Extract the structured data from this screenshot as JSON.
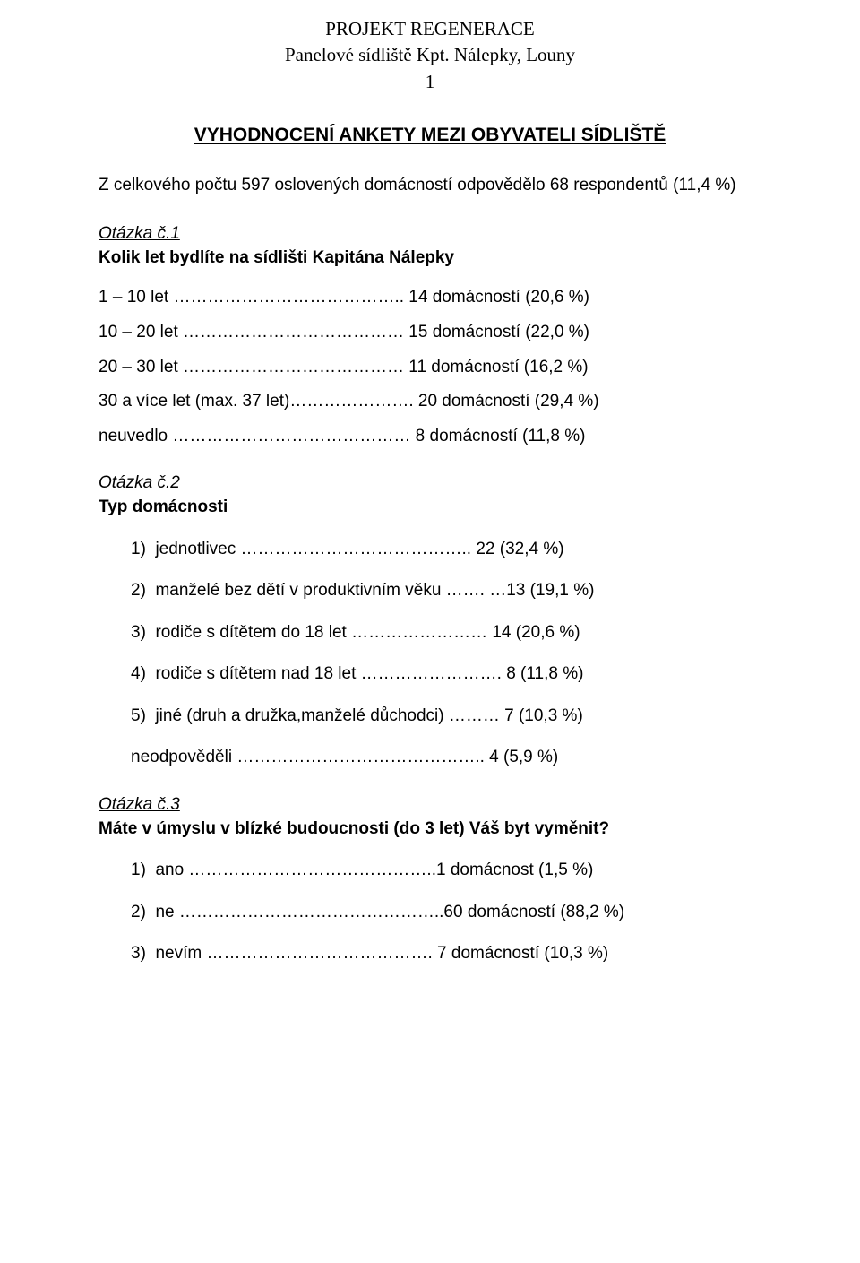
{
  "header": {
    "line1": "PROJEKT REGENERACE",
    "line2": "Panelové sídliště Kpt. Nálepky, Louny",
    "page_number": "1"
  },
  "title": "VYHODNOCENÍ ANKETY MEZI OBYVATELI SÍDLIŠTĚ",
  "intro": "Z celkového počtu 597 oslovených domácností odpovědělo 68 respondentů (11,4 %)",
  "q1": {
    "label": "Otázka č.1",
    "title": "Kolik let bydlíte na sídlišti Kapitána Nálepky",
    "rows": [
      "1 – 10 let ………………………………….. 14 domácností (20,6 %)",
      "10 – 20 let ………………………………… 15 domácností (22,0 %)",
      "20 – 30 let ………………………………… 11 domácností (16,2 %)",
      "30 a více let (max. 37 let)…………………. 20 domácností (29,4 %)",
      "neuvedlo ……………………………………  8 domácností (11,8 %)"
    ]
  },
  "q2": {
    "label": "Otázka č.2",
    "title": "Typ domácnosti",
    "items": [
      "jednotlivec ………………………………….. 22 (32,4 %)",
      "manželé bez dětí v produktivním věku ……. …13 (19,1 %)",
      "rodiče s dítětem do 18 let …………………… 14 (20,6 %)",
      "rodiče s dítětem nad 18 let ……………………. 8 (11,8 %)",
      "jiné (druh a družka,manželé důchodci) ……… 7 (10,3 %)",
      "neodpověděli …………………………………….. 4 (5,9 %)"
    ]
  },
  "q3": {
    "label": "Otázka č.3",
    "title": "Máte v úmyslu v blízké budoucnosti (do 3 let) Váš byt vyměnit?",
    "items": [
      "ano ……………………………………..1 domácnost  (1,5 %)",
      "ne ………………………………………..60 domácností (88,2 %)",
      "nevím ………………………………….  7 domácností (10,3 %)"
    ]
  }
}
